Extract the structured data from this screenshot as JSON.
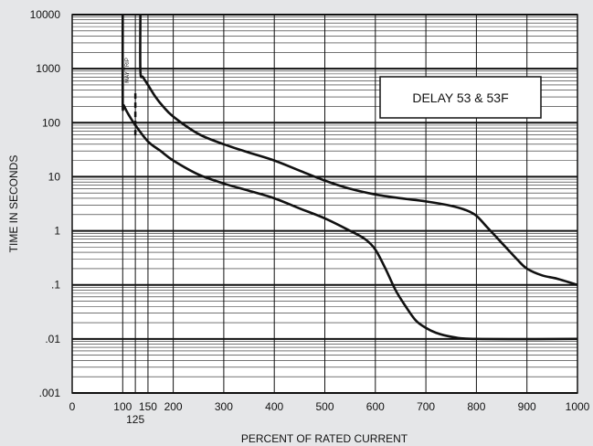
{
  "chart_data": {
    "type": "line",
    "title": "",
    "xlabel": "PERCENT OF RATED CURRENT",
    "ylabel": "TIME IN SECONDS",
    "x_scale": "linear",
    "y_scale": "log",
    "xlim": [
      0,
      1000
    ],
    "ylim": [
      0.001,
      10000
    ],
    "grid": true,
    "x_ticks": [
      {
        "value": 0,
        "label": "0"
      },
      {
        "value": 100,
        "label": "100"
      },
      {
        "value": 150,
        "label": "150"
      },
      {
        "value": 200,
        "label": "200"
      },
      {
        "value": 300,
        "label": "300"
      },
      {
        "value": 400,
        "label": "400"
      },
      {
        "value": 500,
        "label": "500"
      },
      {
        "value": 600,
        "label": "600"
      },
      {
        "value": 700,
        "label": "700"
      },
      {
        "value": 800,
        "label": "800"
      },
      {
        "value": 900,
        "label": "900"
      },
      {
        "value": 1000,
        "label": "1000"
      }
    ],
    "x_ticks_secondary": [
      {
        "value": 125,
        "label": "125"
      }
    ],
    "y_ticks": [
      {
        "value": 10000,
        "label": "10000"
      },
      {
        "value": 1000,
        "label": "1000"
      },
      {
        "value": 100,
        "label": "100"
      },
      {
        "value": 10,
        "label": "10"
      },
      {
        "value": 1,
        "label": "1"
      },
      {
        "value": 0.1,
        "label": ".1"
      },
      {
        "value": 0.01,
        "label": ".01"
      },
      {
        "value": 0.001,
        "label": ".001"
      }
    ],
    "series": [
      {
        "x": [
          100,
          100,
          102,
          110,
          125,
          150,
          175,
          200,
          250,
          300,
          350,
          400,
          450,
          500,
          550,
          580,
          600,
          620,
          640,
          660,
          680,
          700,
          720,
          750,
          800,
          1000
        ],
        "y": [
          10000,
          230,
          210,
          150,
          90,
          45,
          30,
          20,
          11,
          7.5,
          5.5,
          4.0,
          2.6,
          1.7,
          1.0,
          0.7,
          0.45,
          0.2,
          0.08,
          0.04,
          0.022,
          0.016,
          0.013,
          0.011,
          0.01,
          0.01
        ]
      },
      {
        "x": [
          135,
          135,
          140,
          150,
          165,
          180,
          200,
          250,
          300,
          350,
          400,
          450,
          500,
          550,
          600,
          650,
          700,
          750,
          780,
          800,
          820,
          850,
          880,
          900,
          930,
          960,
          1000
        ],
        "y": [
          10000,
          900,
          700,
          500,
          300,
          200,
          130,
          62,
          40,
          28,
          20,
          13,
          8.5,
          6.0,
          4.7,
          4.0,
          3.5,
          2.9,
          2.4,
          1.9,
          1.2,
          0.6,
          0.3,
          0.2,
          0.15,
          0.13,
          0.1
        ]
      }
    ],
    "dashed_marker": {
      "x": 125,
      "y_range": [
        50,
        350
      ]
    },
    "annotations": [
      {
        "text": "MAY TRIP",
        "orientation": "vertical"
      }
    ],
    "legend_box": {
      "text": "DELAY 53 & 53F",
      "placement": "top-right"
    }
  }
}
